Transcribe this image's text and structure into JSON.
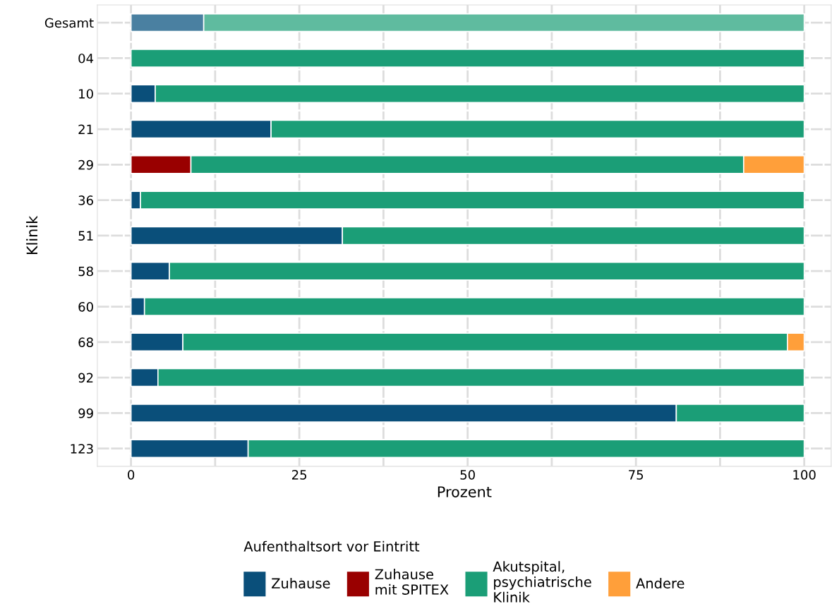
{
  "chart_data": {
    "type": "bar",
    "orientation": "horizontal",
    "stacked": true,
    "xlabel": "Prozent",
    "ylabel": "Klinik",
    "legend_title": "Aufenthaltsort vor Eintritt",
    "categories": [
      "Gesamt",
      "04",
      "10",
      "21",
      "29",
      "36",
      "51",
      "58",
      "60",
      "68",
      "92",
      "99",
      "123"
    ],
    "series": [
      {
        "name": "Zuhause",
        "color": "#0a4f7a",
        "colors": [
          "#4a80a1",
          "#0a4f7a",
          "#0a4f7a",
          "#0a4f7a",
          "#0a4f7a",
          "#0a4f7a",
          "#0a4f7a",
          "#0a4f7a",
          "#0a4f7a",
          "#0a4f7a",
          "#0a4f7a",
          "#0a4f7a",
          "#0a4f7a"
        ],
        "values": [
          10.8,
          0,
          3.6,
          20.8,
          0,
          1.4,
          31.4,
          5.7,
          2.0,
          7.7,
          4.0,
          81.0,
          17.4
        ]
      },
      {
        "name": "Zuhause\nmit SPITEX",
        "color": "#990000",
        "values": [
          0,
          0,
          0,
          0,
          8.9,
          0,
          0,
          0,
          0,
          0,
          0,
          0,
          0
        ]
      },
      {
        "name": "Akutspital,\npsychiatrische\nKlinik",
        "color": "#1b9e77",
        "colors": [
          "#5fbb9f",
          "#1b9e77",
          "#1b9e77",
          "#1b9e77",
          "#1b9e77",
          "#1b9e77",
          "#1b9e77",
          "#1b9e77",
          "#1b9e77",
          "#1b9e77",
          "#1b9e77",
          "#1b9e77",
          "#1b9e77"
        ],
        "values": [
          89.2,
          100,
          96.4,
          79.2,
          82.1,
          98.6,
          68.6,
          94.3,
          98.0,
          89.8,
          96.0,
          19.0,
          82.6
        ]
      },
      {
        "name": "Andere",
        "color": "#ff9f3a",
        "values": [
          0,
          0,
          0,
          0,
          9.0,
          0,
          0,
          0,
          0,
          2.5,
          0,
          0,
          0
        ]
      }
    ],
    "xlim": [
      -5,
      104
    ],
    "xticks": [
      0,
      {
        "value": 12.5,
        "label": null
      },
      25,
      {
        "value": 37.5,
        "label": null
      },
      50,
      {
        "value": 62.5,
        "label": null
      },
      75,
      {
        "value": 87.5,
        "label": null
      },
      100
    ],
    "grid": true,
    "legend": "bottom"
  }
}
